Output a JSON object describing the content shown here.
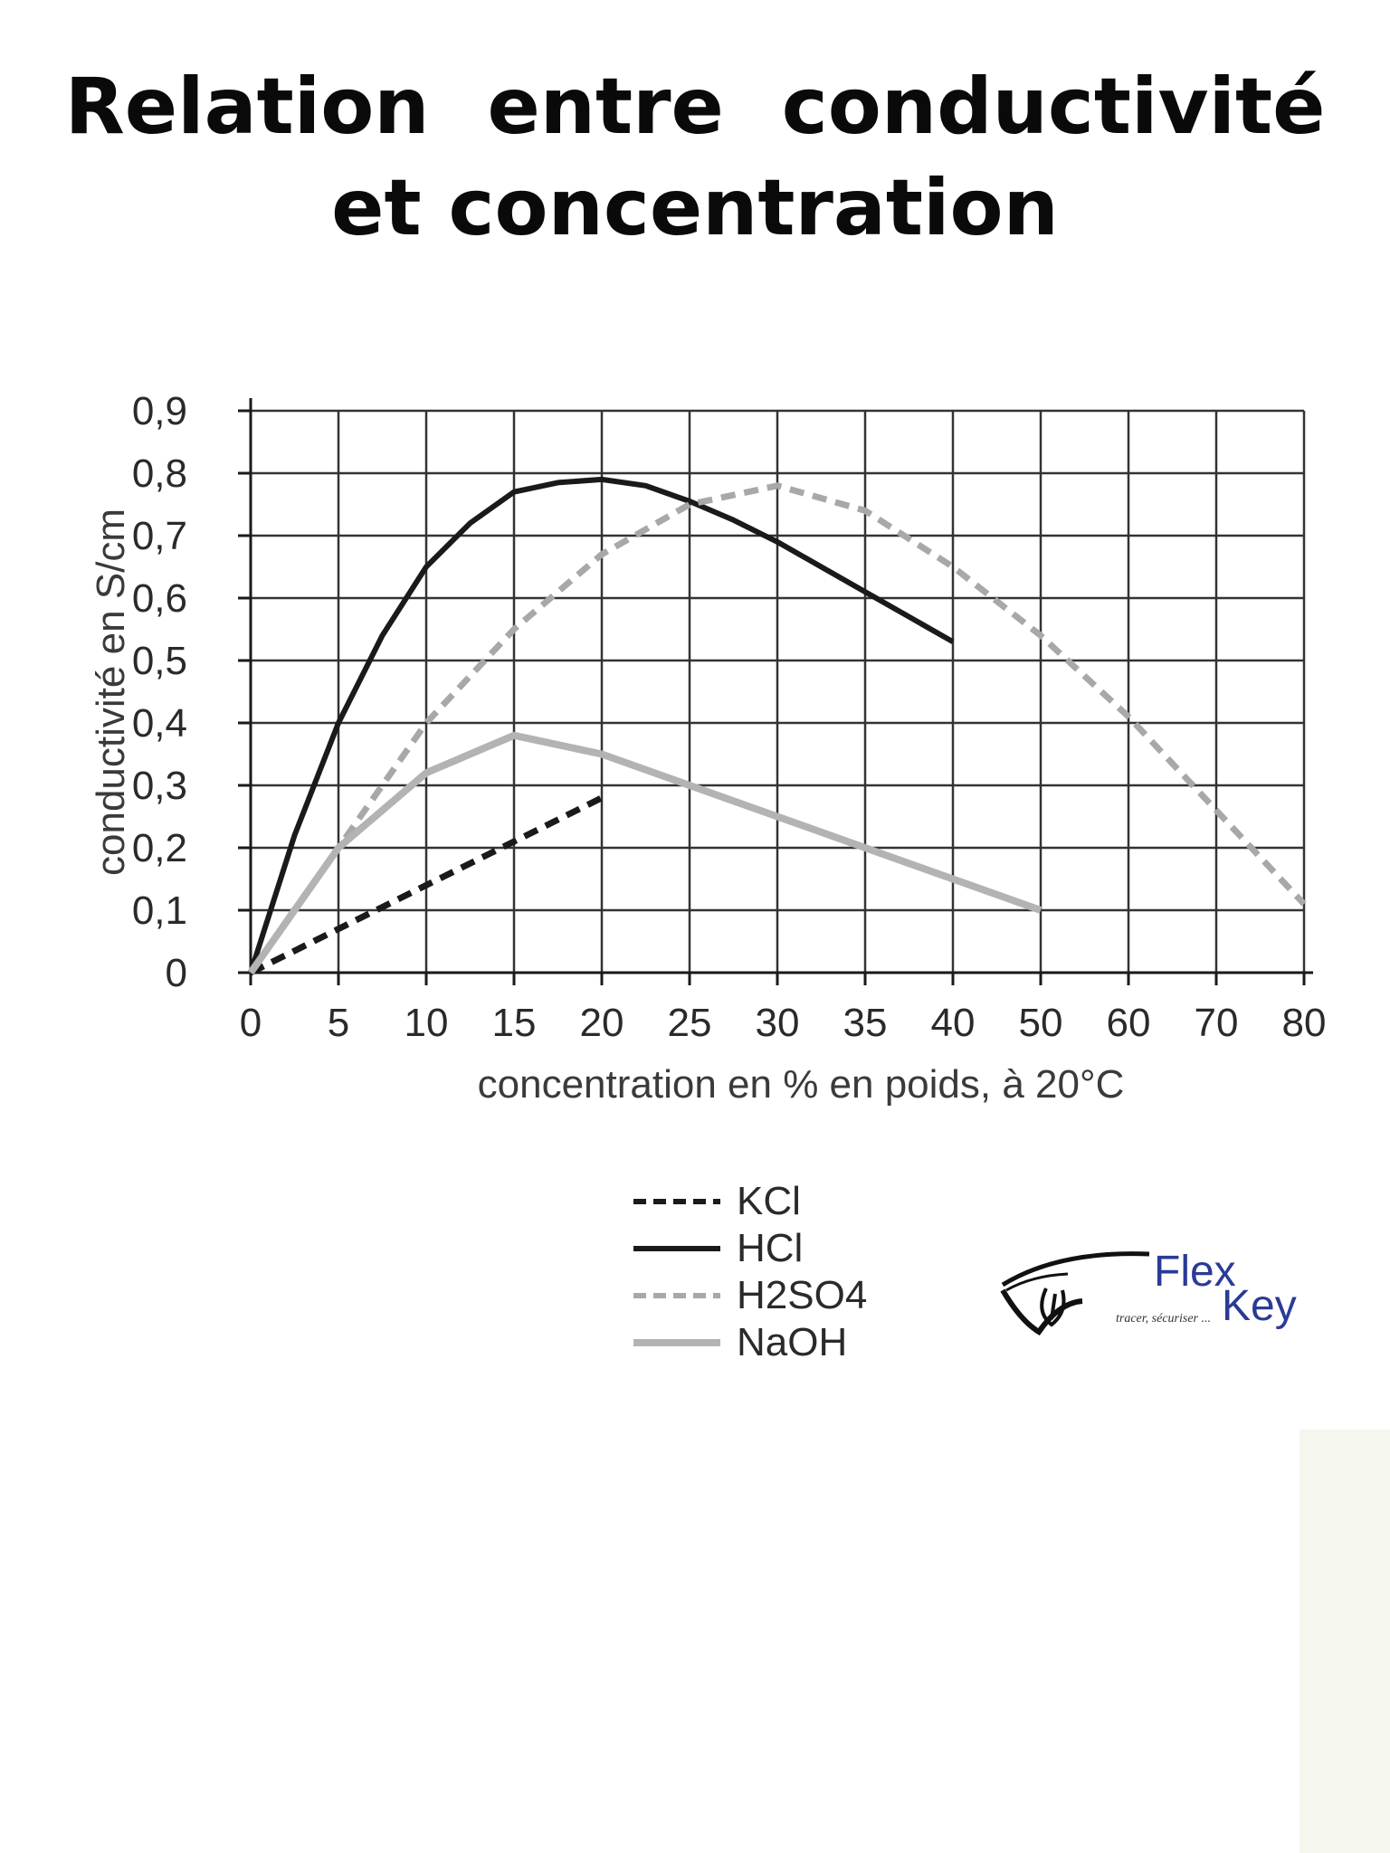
{
  "title": {
    "line1": "Relation entre  conductivité",
    "line2": "et concentration"
  },
  "chart_data": {
    "type": "line",
    "xlabel": "concentration en % en poids, à 20°C",
    "ylabel": "conductivité en S/cm",
    "x_ticks": [
      "0",
      "5",
      "10",
      "15",
      "20",
      "25",
      "30",
      "35",
      "40",
      "50",
      "60",
      "70",
      "80"
    ],
    "y_ticks": [
      "0",
      "0,1",
      "0,2",
      "0,3",
      "0,4",
      "0,5",
      "0,6",
      "0,7",
      "0,8",
      "0,9"
    ],
    "ylim": [
      0,
      0.9
    ],
    "x_scale": "piecewise: equal spacing per tick, steps of 5 up to 50 then steps of 10 up to 80",
    "grid": true,
    "legend_placement": "below chart",
    "series": [
      {
        "name": "KCl",
        "style": "dashed",
        "color": "#1a1a1a",
        "x": [
          0,
          20
        ],
        "y": [
          0,
          0.28
        ]
      },
      {
        "name": "HCl",
        "style": "solid",
        "color": "#1a1a1a",
        "x": [
          0,
          2.5,
          5,
          7.5,
          10,
          12.5,
          15,
          17.5,
          20,
          22.5,
          25,
          27.5,
          30,
          32.5,
          35,
          37.5,
          40
        ],
        "y": [
          0,
          0.22,
          0.4,
          0.54,
          0.65,
          0.72,
          0.77,
          0.785,
          0.79,
          0.78,
          0.755,
          0.725,
          0.69,
          0.65,
          0.61,
          0.57,
          0.53
        ]
      },
      {
        "name": "H2SO4",
        "style": "dashed",
        "color": "#a8a8a8",
        "x": [
          0,
          5,
          10,
          15,
          20,
          25,
          30,
          35,
          40,
          50,
          60,
          70,
          80
        ],
        "y": [
          0,
          0.2,
          0.4,
          0.55,
          0.67,
          0.75,
          0.78,
          0.74,
          0.65,
          0.54,
          0.41,
          0.26,
          0.11
        ]
      },
      {
        "name": "NaOH",
        "style": "solid",
        "color": "#b3b3b3",
        "x": [
          0,
          5,
          10,
          15,
          20,
          25,
          30,
          35,
          40,
          50
        ],
        "y": [
          0,
          0.2,
          0.32,
          0.38,
          0.35,
          0.3,
          0.25,
          0.2,
          0.15,
          0.1
        ]
      }
    ]
  },
  "legend": [
    {
      "label": "KCl",
      "color": "#1a1a1a",
      "style": "dashed"
    },
    {
      "label": "HCl",
      "color": "#1a1a1a",
      "style": "solid"
    },
    {
      "label": "H2SO4",
      "color": "#a8a8a8",
      "style": "dashed"
    },
    {
      "label": "NaOH",
      "color": "#b3b3b3",
      "style": "solid"
    }
  ],
  "logo": {
    "flex": "Flex",
    "key": "Key",
    "tagline": "tracer, sécuriser ...",
    "color": "#2a3b96"
  }
}
